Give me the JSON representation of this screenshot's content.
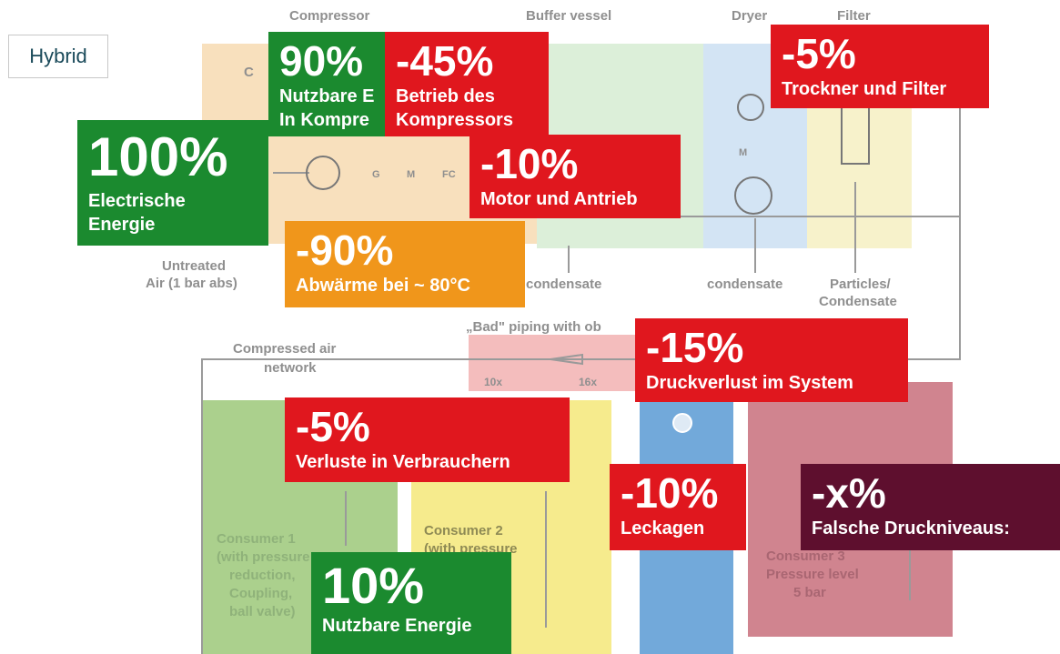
{
  "badge": "Hybrid",
  "diagram": {
    "compressor": "Compressor",
    "buffer_vessel": "Buffer vessel",
    "dryer": "Dryer",
    "filter": "Filter",
    "compressor_abbr": "C",
    "g": "G",
    "m": "M",
    "fc": "FC",
    "m2": "M",
    "untreated": [
      "Untreated",
      "Air (1 bar abs)"
    ],
    "condensate_1": "condensate",
    "condensate_2": "condensate",
    "particles": [
      "Particles/",
      "Condensate"
    ],
    "bad_piping": "„Bad\" piping with ob",
    "network": [
      "Compressed air",
      "network"
    ],
    "ratio_1": "10x",
    "ratio_2": "16x",
    "consumer1": [
      "Consumer 1",
      "(with pressure",
      "reduction,",
      "Coupling,",
      "ball valve)"
    ],
    "consumer2": [
      "Consumer 2",
      "(with pressure"
    ],
    "consumer3": [
      "Consumer 3",
      "Pressure level",
      "5 bar"
    ]
  },
  "boxes": [
    {
      "value": "90%",
      "lines": [
        "Nutzbare E",
        "In Kompre"
      ]
    },
    {
      "value": "-45%",
      "lines": [
        "Betrieb des",
        "Kompressors"
      ]
    },
    {
      "value": "-5%",
      "lines": [
        "Trockner und Filter"
      ]
    },
    {
      "value": "100%",
      "lines": [
        "Electrische",
        "Energie"
      ]
    },
    {
      "value": "-10%",
      "lines": [
        "Motor und Antrieb"
      ]
    },
    {
      "value": "-90%",
      "lines": [
        "Abwärme bei ~ 80°C"
      ]
    },
    {
      "value": "-15%",
      "lines": [
        "Druckverlust im System"
      ]
    },
    {
      "value": "-5%",
      "lines": [
        "Verluste in Verbrauchern"
      ]
    },
    {
      "value": "-10%",
      "lines": [
        "Leckagen"
      ]
    },
    {
      "value": "-x%",
      "lines": [
        "Falsche Druckniveaus:"
      ]
    },
    {
      "value": "10%",
      "lines": [
        "Nutzbare Energie"
      ]
    }
  ]
}
